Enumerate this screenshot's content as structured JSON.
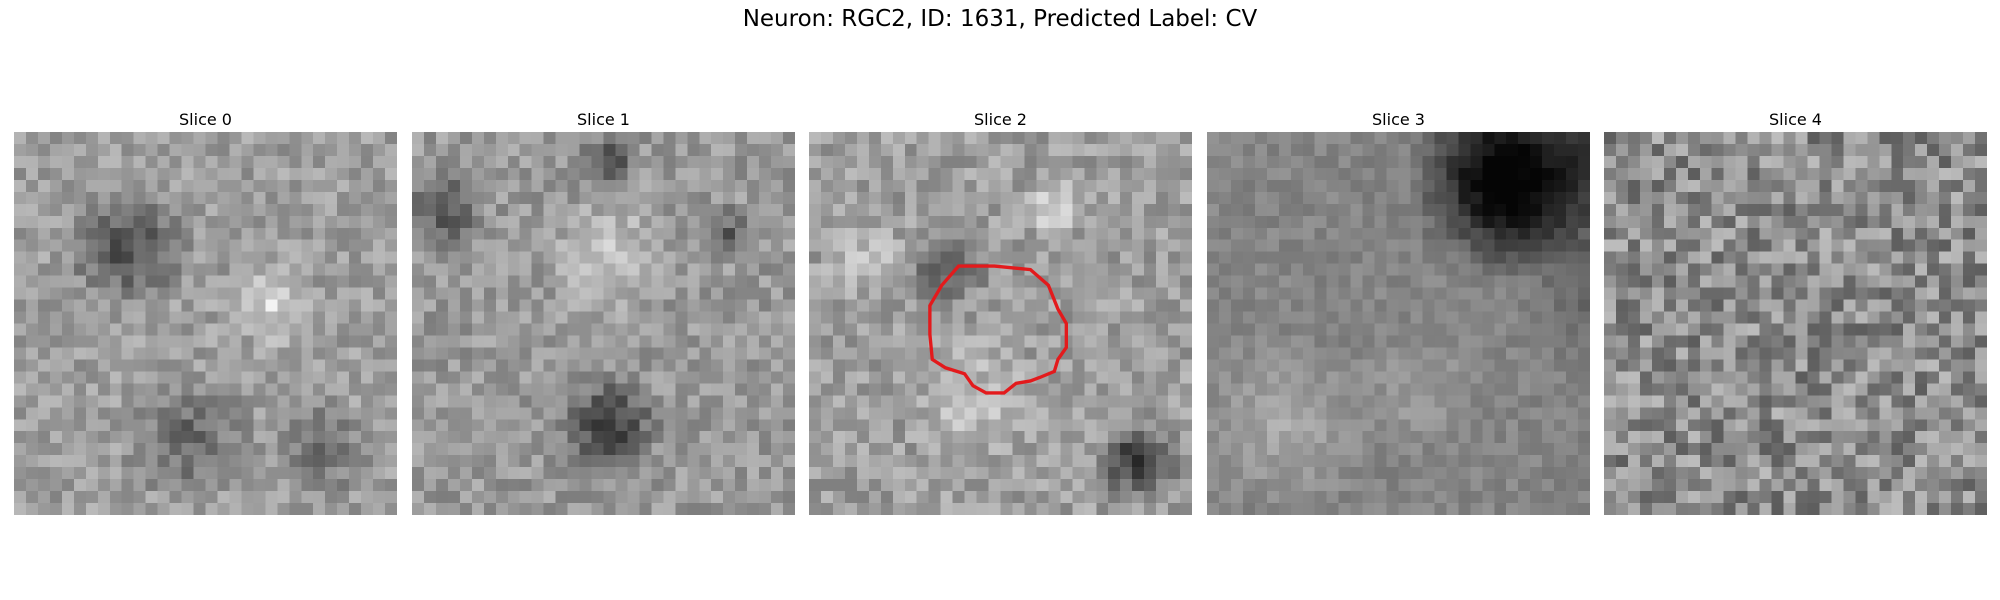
{
  "figure": {
    "title": "Neuron: RGC2, ID: 1631, Predicted Label: CV"
  },
  "panels": [
    {
      "title": "Slice 0",
      "image": "grayscale-microscopy-slice",
      "contour": false
    },
    {
      "title": "Slice 1",
      "image": "grayscale-microscopy-slice",
      "contour": false
    },
    {
      "title": "Slice 2",
      "image": "grayscale-microscopy-slice",
      "contour": true,
      "contour_color": "#e31a1c"
    },
    {
      "title": "Slice 3",
      "image": "grayscale-microscopy-slice",
      "contour": false
    },
    {
      "title": "Slice 4",
      "image": "grayscale-microscopy-slice",
      "contour": false
    }
  ]
}
